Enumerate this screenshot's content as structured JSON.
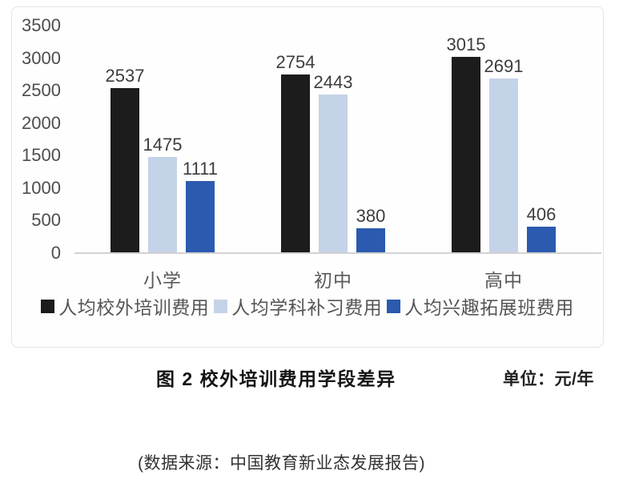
{
  "chart_data": {
    "type": "bar",
    "title": "图 2 校外培训费用学段差异",
    "unit_label": "单位：元/年",
    "categories": [
      "小学",
      "初中",
      "高中"
    ],
    "series": [
      {
        "name": "人均校外培训费用",
        "color": "#1c1c1c",
        "values": [
          2537,
          2754,
          3015
        ]
      },
      {
        "name": "人均学科补习费用",
        "color": "#c5d3e8",
        "values": [
          1475,
          2443,
          2691
        ]
      },
      {
        "name": "人均兴趣拓展班费用",
        "color": "#2b5aaf",
        "values": [
          1111,
          380,
          406
        ]
      }
    ],
    "yticks": [
      0,
      500,
      1000,
      1500,
      2000,
      2500,
      3000,
      3500
    ],
    "ylim": [
      0,
      3500
    ],
    "grid": false,
    "legend_position": "bottom",
    "value_labels": true
  },
  "source": "(数据来源：中国教育新业态发展报告)",
  "colors": {
    "panel_border": "#e4e4e4",
    "axis_line": "#d2d2d2",
    "tick_text": "#4d4d4d",
    "value_text": "#3d3d3d",
    "category_text": "#595959",
    "legend_text": "#555555"
  }
}
